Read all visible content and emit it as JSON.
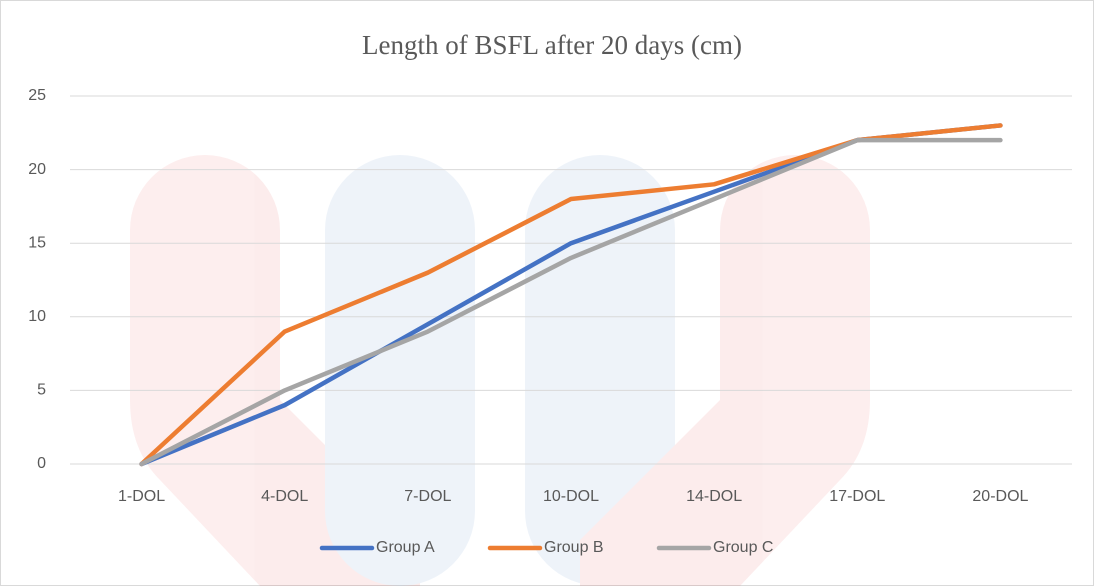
{
  "chart_data": {
    "type": "line",
    "title": "Length of BSFL after 20 days (cm)",
    "categories": [
      "1-DOL",
      "4-DOL",
      "7-DOL",
      "10-DOL",
      "14-DOL",
      "17-DOL",
      "20-DOL"
    ],
    "series": [
      {
        "name": "Group A",
        "color": "#4472c4",
        "values": [
          0,
          4,
          9.5,
          15,
          18.5,
          22,
          23
        ]
      },
      {
        "name": "Group B",
        "color": "#ed7d31",
        "values": [
          0,
          9,
          13,
          18,
          19,
          22,
          23
        ]
      },
      {
        "name": "Group C",
        "color": "#a5a5a5",
        "values": [
          0,
          5,
          9,
          14,
          18,
          22,
          22
        ]
      }
    ],
    "ylim": [
      0,
      25
    ],
    "yticks": [
      0,
      5,
      10,
      15,
      20,
      25
    ],
    "grid": true,
    "legend": "bottom"
  }
}
